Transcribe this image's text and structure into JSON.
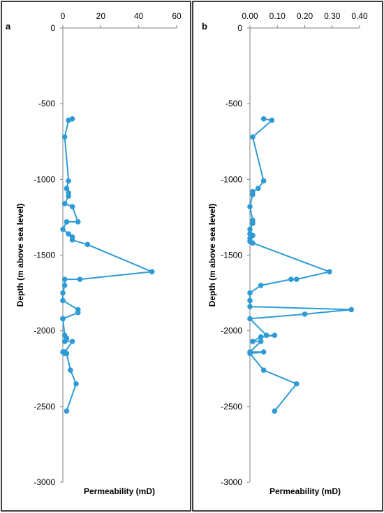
{
  "chart_data": [
    {
      "type": "line",
      "panel_label": "a",
      "xlabel": "Permeability (mD)",
      "ylabel": "Depth (m above sea level)",
      "xlim": [
        0,
        60
      ],
      "ylim": [
        -3000,
        0
      ],
      "x_ticks": [
        "0",
        "20",
        "40",
        "60"
      ],
      "y_ticks": [
        "0",
        "-500",
        "-1000",
        "-1500",
        "-2000",
        "-2500",
        "-3000"
      ],
      "x_axis_position": "top",
      "grid": false,
      "color": "#2E9BD6",
      "series": [
        {
          "x": [
            5,
            3,
            1,
            3,
            2,
            3,
            3,
            1,
            5,
            8,
            2,
            0,
            3,
            5,
            5,
            13,
            47,
            9,
            1,
            1,
            0,
            0,
            8,
            8,
            0,
            0,
            1,
            2,
            1,
            5,
            1,
            0,
            1,
            2,
            4,
            7,
            2
          ],
          "y": [
            -600,
            -610,
            -720,
            -1010,
            -1060,
            -1090,
            -1110,
            -1160,
            -1180,
            -1280,
            -1280,
            -1330,
            -1360,
            -1380,
            -1400,
            -1430,
            -1610,
            -1660,
            -1660,
            -1700,
            -1750,
            -1800,
            -1860,
            -1880,
            -1920,
            -1920,
            -2030,
            -2050,
            -2070,
            -2070,
            -2140,
            -2140,
            -2150,
            -2150,
            -2260,
            -2350,
            -2530
          ]
        }
      ]
    },
    {
      "type": "line",
      "panel_label": "b",
      "xlabel": "Permeability (mD)",
      "ylabel": "Depth (m above sea level)",
      "xlim": [
        0,
        0.4
      ],
      "ylim": [
        -3000,
        0
      ],
      "x_ticks": [
        "0.00",
        "0.10",
        "0.20",
        "0.30",
        "0.40"
      ],
      "y_ticks": [
        "0",
        "-500",
        "-1000",
        "-1500",
        "-2000",
        "-2500",
        "-3000"
      ],
      "x_axis_position": "top",
      "grid": false,
      "color": "#2E9BD6",
      "series": [
        {
          "x": [
            0.05,
            0.08,
            0.01,
            0.05,
            0.03,
            0.01,
            0.01,
            0.0,
            0.01,
            0.01,
            0.0,
            0.0,
            0.01,
            0.0,
            0.0,
            0.01,
            0.29,
            0.17,
            0.15,
            0.04,
            0.0,
            0.0,
            0.0,
            0.37,
            0.2,
            0.0,
            0.06,
            0.09,
            0.04,
            0.01,
            0.04,
            0.0,
            0.05,
            0.0,
            0.05,
            0.17,
            0.09
          ],
          "y": [
            -600,
            -610,
            -720,
            -1010,
            -1060,
            -1080,
            -1100,
            -1180,
            -1270,
            -1290,
            -1330,
            -1360,
            -1370,
            -1390,
            -1410,
            -1420,
            -1610,
            -1660,
            -1660,
            -1700,
            -1750,
            -1800,
            -1840,
            -1860,
            -1890,
            -1920,
            -2030,
            -2030,
            -2040,
            -2070,
            -2070,
            -2140,
            -2140,
            -2150,
            -2260,
            -2350,
            -2530
          ]
        }
      ]
    }
  ]
}
